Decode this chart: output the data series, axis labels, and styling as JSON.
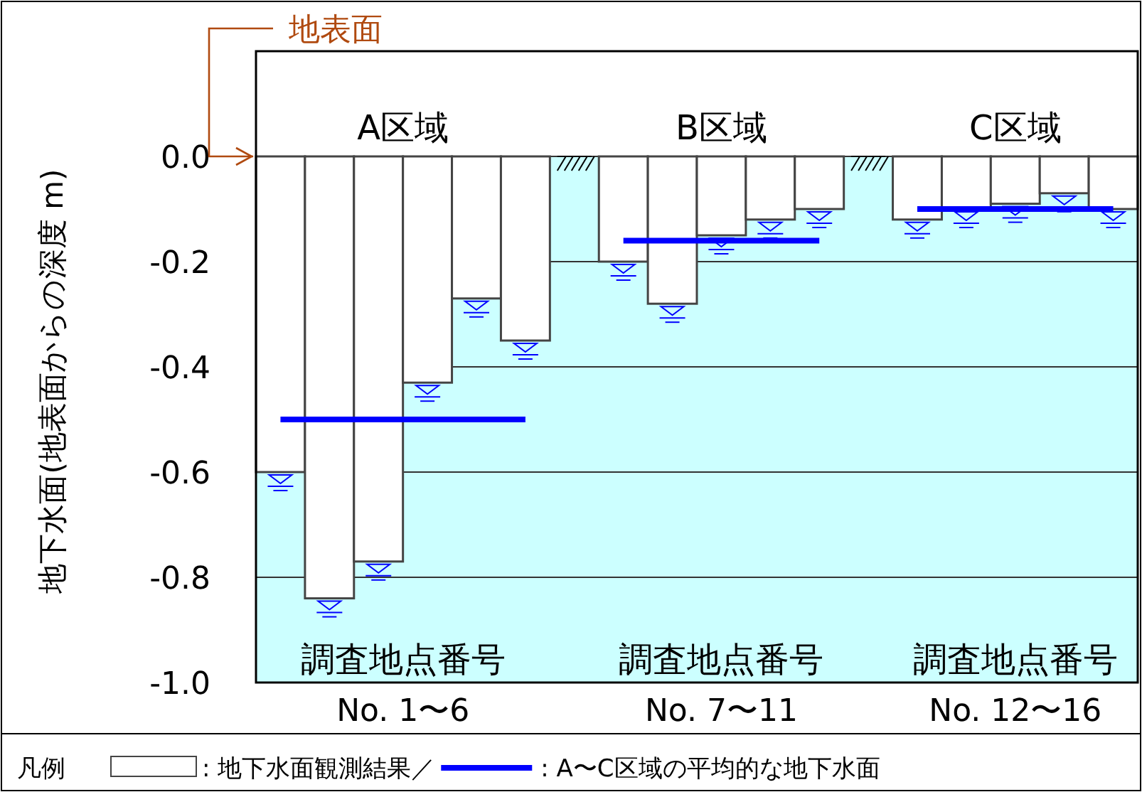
{
  "chart_data": {
    "type": "bar",
    "ylabel": "地下水面(地表面からの深度 m)",
    "legend_title": "凡例",
    "legend": "bottom",
    "grid": "y",
    "categories": [
      null,
      null,
      null,
      null,
      null,
      null,
      null,
      null,
      null,
      null,
      null,
      null,
      null,
      null,
      null,
      null,
      null,
      null
    ],
    "ylim": [
      -1.0,
      0.2
    ],
    "yticks": [
      {
        "value": 0,
        "label": "0.0"
      },
      {
        "value": -0.2,
        "label": "-0.2"
      },
      {
        "value": -0.4,
        "label": "-0.4"
      },
      {
        "value": -0.6,
        "label": "-0.6"
      },
      {
        "value": -0.8,
        "label": "-0.8"
      },
      {
        "value": -1.0,
        "label": "-1.0"
      }
    ],
    "bands": [
      {
        "axis": "y",
        "from": -1.0,
        "to": 0,
        "color": "#ccffff"
      }
    ],
    "series": [
      {
        "name": ": 地下水面観測結果／",
        "type": "bar",
        "color": "#ffffff",
        "marker": "triangle",
        "values": [
          -0.6,
          -0.84,
          -0.77,
          -0.43,
          -0.27,
          -0.35,
          null,
          -0.2,
          -0.28,
          -0.15,
          -0.12,
          -0.1,
          null,
          -0.12,
          -0.1,
          -0.09,
          -0.07,
          -0.1
        ]
      },
      {
        "name": ": A〜C区域の平均的な地下水面",
        "type": "line",
        "color": "#0000ff",
        "values": [
          -0.5,
          -0.5,
          -0.5,
          -0.5,
          -0.5,
          -0.5,
          null,
          -0.16,
          -0.16,
          -0.16,
          -0.16,
          -0.16,
          null,
          -0.1,
          -0.1,
          -0.1,
          -0.1,
          -0.1
        ]
      }
    ],
    "annotations": [
      "A区域",
      "B区域",
      "C区域",
      "調査地点番号",
      "調査地点番号",
      "調査地点番号",
      "No. 1〜6",
      "No. 7〜11",
      "No. 12〜16",
      "地表面"
    ]
  }
}
